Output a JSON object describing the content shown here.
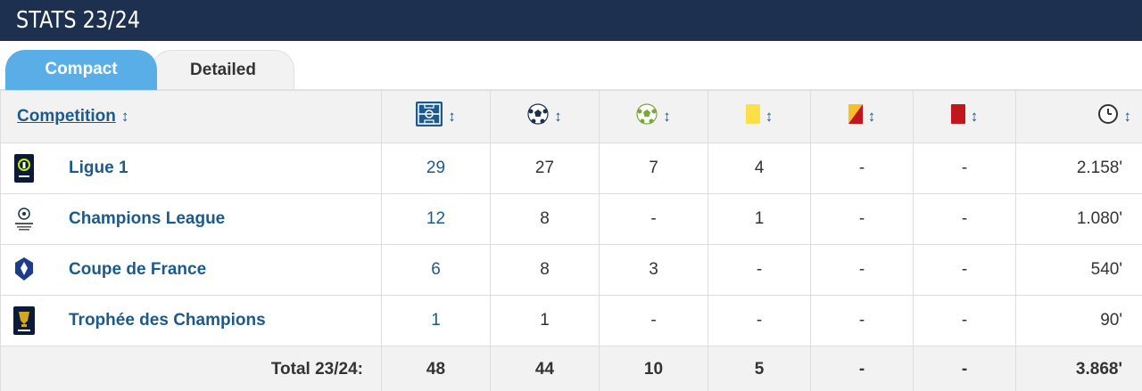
{
  "header": {
    "title": "STATS 23/24"
  },
  "tabs": [
    {
      "label": "Compact",
      "active": true
    },
    {
      "label": "Detailed",
      "active": false
    }
  ],
  "table": {
    "competition_header": "Competition",
    "column_icons": [
      "pitch-icon",
      "ball-icon",
      "assist-ball-icon",
      "yellow-card-icon",
      "yellow-red-card-icon",
      "red-card-icon",
      "clock-icon"
    ],
    "rows": [
      {
        "name": "Ligue 1",
        "logo": "ligue1-logo",
        "apps": "29",
        "goals": "27",
        "assists": "7",
        "yellow": "4",
        "yellow_red": "-",
        "red": "-",
        "minutes": "2.158'"
      },
      {
        "name": "Champions League",
        "logo": "champions-league-logo",
        "apps": "12",
        "goals": "8",
        "assists": "-",
        "yellow": "1",
        "yellow_red": "-",
        "red": "-",
        "minutes": "1.080'"
      },
      {
        "name": "Coupe de France",
        "logo": "coupe-de-france-logo",
        "apps": "6",
        "goals": "8",
        "assists": "3",
        "yellow": "-",
        "yellow_red": "-",
        "red": "-",
        "minutes": "540'"
      },
      {
        "name": "Trophée des Champions",
        "logo": "trophee-des-champions-logo",
        "apps": "1",
        "goals": "1",
        "assists": "-",
        "yellow": "-",
        "yellow_red": "-",
        "red": "-",
        "minutes": "90'"
      }
    ],
    "total": {
      "label": "Total 23/24:",
      "apps": "48",
      "goals": "44",
      "assists": "10",
      "yellow": "5",
      "yellow_red": "-",
      "red": "-",
      "minutes": "3.868'"
    }
  },
  "colors": {
    "header_bg": "#1d3050",
    "tab_active": "#5aaee8",
    "link": "#1d5a8c",
    "yellow_card": "#fde047",
    "red_card": "#c0161e"
  }
}
